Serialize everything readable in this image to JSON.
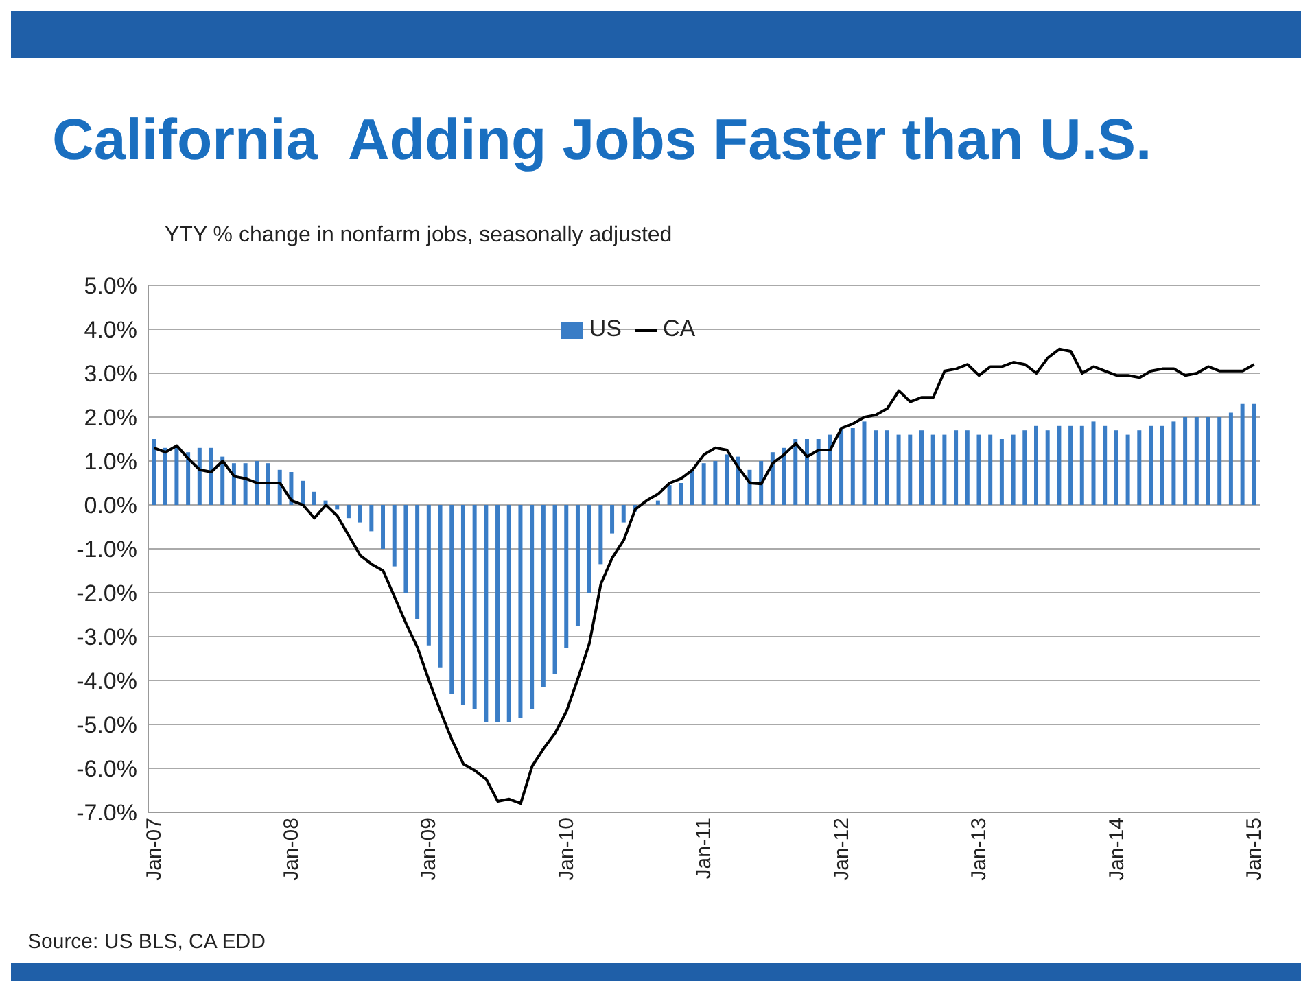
{
  "chart_data": {
    "type": "bar",
    "title": "California  Adding Jobs Faster than U.S.",
    "subtitle": "YTY % change in nonfarm jobs, seasonally adjusted",
    "categories": [
      "Jan-07",
      null,
      null,
      null,
      null,
      null,
      null,
      null,
      null,
      null,
      null,
      null,
      "Jan-08",
      null,
      null,
      null,
      null,
      null,
      null,
      null,
      null,
      null,
      null,
      null,
      "Jan-09",
      null,
      null,
      null,
      null,
      null,
      null,
      null,
      null,
      null,
      null,
      null,
      "Jan-10",
      null,
      null,
      null,
      null,
      null,
      null,
      null,
      null,
      null,
      null,
      null,
      "Jan-11",
      null,
      null,
      null,
      null,
      null,
      null,
      null,
      null,
      null,
      null,
      null,
      "Jan-12",
      null,
      null,
      null,
      null,
      null,
      null,
      null,
      null,
      null,
      null,
      null,
      "Jan-13",
      null,
      null,
      null,
      null,
      null,
      null,
      null,
      null,
      null,
      null,
      null,
      "Jan-14",
      null,
      null,
      null,
      null,
      null,
      null,
      null,
      null,
      null,
      null,
      null,
      "Jan-15"
    ],
    "series": [
      {
        "name": "US",
        "color": "#3a7dc6",
        "values": [
          1.5,
          1.3,
          1.3,
          1.2,
          1.3,
          1.3,
          1.1,
          0.95,
          0.95,
          1.0,
          0.95,
          0.8,
          0.75,
          0.55,
          0.3,
          0.1,
          -0.1,
          -0.3,
          -0.4,
          -0.6,
          -1.0,
          -1.4,
          -2.0,
          -2.6,
          -3.2,
          -3.7,
          -4.3,
          -4.55,
          -4.65,
          -4.95,
          -4.95,
          -4.95,
          -4.85,
          -4.65,
          -4.15,
          -3.85,
          -3.25,
          -2.75,
          -2.0,
          -1.35,
          -0.65,
          -0.4,
          -0.15,
          0.0,
          0.1,
          0.45,
          0.5,
          0.8,
          0.95,
          1.0,
          1.15,
          1.1,
          0.8,
          1.0,
          1.2,
          1.3,
          1.5,
          1.5,
          1.5,
          1.6,
          1.75,
          1.75,
          1.9,
          1.7,
          1.7,
          1.6,
          1.6,
          1.7,
          1.6,
          1.6,
          1.7,
          1.7,
          1.6,
          1.6,
          1.5,
          1.6,
          1.7,
          1.8,
          1.7,
          1.8,
          1.8,
          1.8,
          1.9,
          1.8,
          1.7,
          1.6,
          1.7,
          1.8,
          1.8,
          1.9,
          2.0,
          2.0,
          2.0,
          2.0,
          2.1,
          2.3,
          2.3
        ]
      },
      {
        "name": "CA",
        "type": "line",
        "color": "#000000",
        "values": [
          1.3,
          1.2,
          1.35,
          1.05,
          0.8,
          0.75,
          1.0,
          0.65,
          0.6,
          0.5,
          0.5,
          0.5,
          0.1,
          0.0,
          -0.3,
          0.0,
          -0.25,
          -0.7,
          -1.15,
          -1.35,
          -1.5,
          -2.1,
          -2.7,
          -3.25,
          -4.0,
          -4.7,
          -5.35,
          -5.9,
          -6.05,
          -6.25,
          -6.75,
          -6.7,
          -6.8,
          -5.95,
          -5.55,
          -5.2,
          -4.7,
          -3.95,
          -3.15,
          -1.8,
          -1.2,
          -0.8,
          -0.1,
          0.1,
          0.25,
          0.5,
          0.6,
          0.8,
          1.15,
          1.3,
          1.25,
          0.85,
          0.5,
          0.48,
          0.95,
          1.15,
          1.4,
          1.1,
          1.25,
          1.25,
          1.75,
          1.85,
          2.0,
          2.05,
          2.2,
          2.6,
          2.35,
          2.45,
          2.45,
          3.05,
          3.1,
          3.2,
          2.95,
          3.15,
          3.15,
          3.25,
          3.2,
          3.0,
          3.35,
          3.55,
          3.5,
          3.0,
          3.15,
          3.05,
          2.95,
          2.95,
          2.9,
          3.05,
          3.1,
          3.1,
          2.95,
          3.0,
          3.15,
          3.05,
          3.05,
          3.05,
          3.2
        ]
      }
    ],
    "ylim": [
      -7,
      5
    ],
    "yticks": [
      {
        "value": 5,
        "label": "5.0%"
      },
      {
        "value": 4,
        "label": "4.0%"
      },
      {
        "value": 3,
        "label": "3.0%"
      },
      {
        "value": 2,
        "label": "2.0%"
      },
      {
        "value": 1,
        "label": "1.0%"
      },
      {
        "value": 0,
        "label": "0.0%"
      },
      {
        "value": -1,
        "label": "-1.0%"
      },
      {
        "value": -2,
        "label": "-2.0%"
      },
      {
        "value": -3,
        "label": "-3.0%"
      },
      {
        "value": -4,
        "label": "-4.0%"
      },
      {
        "value": -5,
        "label": "-5.0%"
      },
      {
        "value": -6,
        "label": "-6.0%"
      },
      {
        "value": -7,
        "label": "-7.0%"
      }
    ],
    "grid": "y",
    "legend": "top",
    "line_style": "solid",
    "marker": "none",
    "annotations": [
      "Source: US BLS, CA EDD"
    ]
  }
}
